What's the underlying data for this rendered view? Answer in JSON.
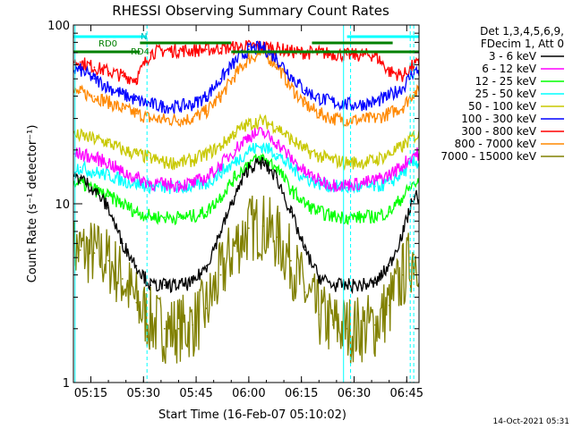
{
  "chart_data": {
    "type": "line",
    "title": "RHESSI Observing Summary Count Rates",
    "xlabel": "Start Time (16-Feb-07 05:10:02)",
    "ylabel": "Count Rate (s⁻¹ detector⁻¹)",
    "y_scale": "log",
    "ylim": [
      1,
      100
    ],
    "xlim": [
      "05:10:02",
      "06:48:30"
    ],
    "x_ticks": [
      "05:15",
      "05:30",
      "05:45",
      "06:00",
      "06:15",
      "06:30",
      "06:45"
    ],
    "y_ticks": [
      "1",
      "10",
      "100"
    ],
    "legend_header": [
      "Det 1,3,4,5,6,9,",
      "FDecim 1, Att 0"
    ],
    "legend_position": "right",
    "x": [
      "05:12",
      "05:16",
      "05:20",
      "05:24",
      "05:28",
      "05:32",
      "05:36",
      "05:40",
      "05:44",
      "05:48",
      "05:52",
      "05:56",
      "06:00",
      "06:04",
      "06:08",
      "06:12",
      "06:16",
      "06:20",
      "06:24",
      "06:28",
      "06:32",
      "06:36",
      "06:40",
      "06:44",
      "06:47"
    ],
    "series": [
      {
        "name": "3 - 6 keV",
        "color": "#000000",
        "values": [
          14,
          12,
          9.5,
          6,
          4.5,
          3.5,
          3.5,
          3.5,
          3.6,
          4.5,
          7,
          11,
          16,
          17,
          14,
          9,
          5.5,
          3.9,
          3.5,
          3.5,
          3.5,
          3.6,
          4.5,
          7,
          11
        ]
      },
      {
        "name": "6 - 12 keV",
        "color": "#ff00ff",
        "values": [
          19,
          18,
          17,
          15,
          14,
          13,
          12.8,
          12.8,
          13,
          14,
          16.5,
          20,
          24,
          25,
          22,
          18,
          15,
          13.5,
          12.8,
          12.8,
          13,
          13.5,
          14.5,
          16.5,
          19
        ]
      },
      {
        "name": "12 - 25 keV",
        "color": "#00ff00",
        "values": [
          13,
          12,
          11,
          10,
          9,
          8.5,
          8.4,
          8.4,
          8.5,
          9,
          11,
          14,
          17,
          18,
          16,
          12,
          10,
          9,
          8.5,
          8.4,
          8.4,
          8.5,
          9,
          11,
          13
        ]
      },
      {
        "name": "25 - 50 keV",
        "color": "#00ffff",
        "values": [
          16,
          15,
          14.5,
          13.5,
          13,
          12.5,
          12.3,
          12.3,
          12.5,
          13,
          15,
          17,
          20,
          21,
          19,
          16,
          14,
          13,
          12.5,
          12.3,
          12.3,
          12.5,
          13,
          15,
          17
        ]
      },
      {
        "name": "50 - 100 keV",
        "color": "#c8c800",
        "values": [
          24,
          23,
          22,
          20,
          19,
          18,
          17,
          17,
          17.5,
          19,
          21,
          25,
          28,
          29,
          27,
          23,
          20,
          18.5,
          17.5,
          17,
          17,
          17.5,
          19,
          21,
          24
        ]
      },
      {
        "name": "100 - 300 keV",
        "color": "#0000ff",
        "values": [
          56,
          50,
          45,
          41,
          38,
          36,
          35,
          35,
          36,
          40,
          50,
          62,
          73,
          75,
          65,
          52,
          43,
          39,
          37,
          36,
          36,
          37,
          40,
          45,
          55
        ]
      },
      {
        "name": "300 - 800 keV",
        "color": "#ff0000",
        "values": [
          62,
          58,
          55,
          52,
          50,
          70,
          72,
          72,
          72,
          73,
          74,
          75,
          76,
          76,
          74,
          71,
          70,
          70,
          69,
          68,
          68,
          68,
          55,
          52,
          60
        ]
      },
      {
        "name": "800 - 7000 keV",
        "color": "#ff8800",
        "values": [
          42,
          40,
          37,
          34,
          32,
          30,
          29.5,
          29.5,
          30,
          33,
          40,
          52,
          65,
          70,
          60,
          45,
          36,
          32,
          30,
          29.5,
          29.5,
          30,
          32,
          35,
          42
        ]
      },
      {
        "name": "7000 - 15000 keV",
        "color": "#808000",
        "values": [
          5.5,
          5.3,
          4.8,
          3.8,
          2.8,
          2.2,
          2,
          2,
          2.1,
          2.6,
          4,
          5.8,
          7.3,
          7.5,
          6.5,
          4.8,
          3.2,
          2.4,
          2.1,
          2,
          2,
          2.1,
          2.7,
          4,
          5.2
        ]
      }
    ],
    "annotations": {
      "bars": [
        {
          "label": "RD0",
          "color": "#00ffff",
          "start": "05:10",
          "end": "05:32"
        },
        {
          "label": "N",
          "color": "#00ffff",
          "start": "05:30",
          "end": "05:32"
        },
        {
          "label": "RD4",
          "color": "#008000",
          "start": "05:29",
          "end": "05:55"
        }
      ],
      "timestamp": "14-Oct-2021 05:31"
    }
  }
}
